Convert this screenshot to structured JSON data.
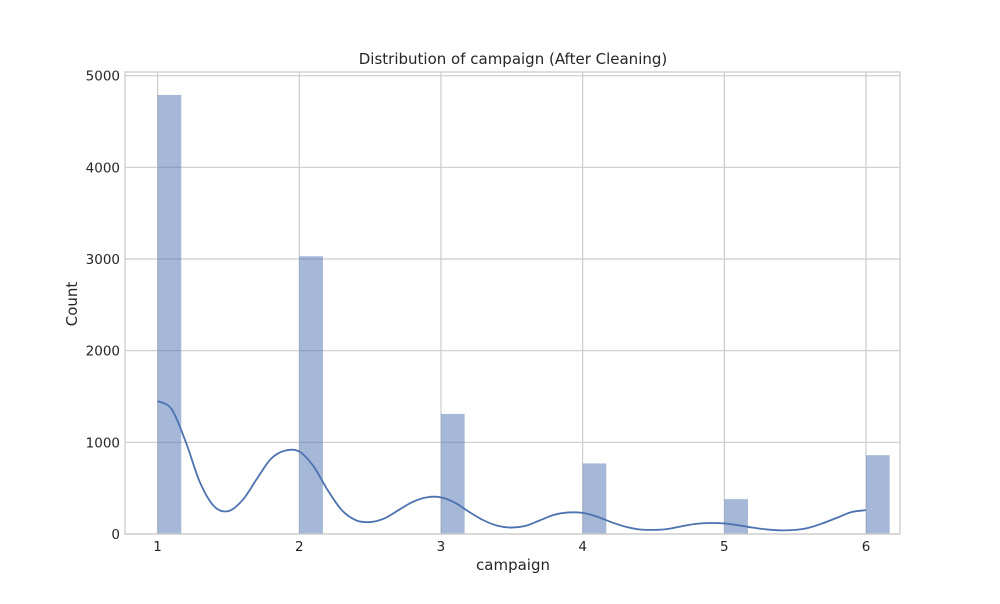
{
  "chart_data": {
    "type": "bar",
    "title": "Distribution of campaign (After Cleaning)",
    "xlabel": "campaign",
    "ylabel": "Count",
    "x_ticks": [
      1,
      2,
      3,
      4,
      5,
      6
    ],
    "y_ticks": [
      0,
      1000,
      2000,
      3000,
      4000,
      5000
    ],
    "xlim": [
      0.77,
      6.24
    ],
    "ylim": [
      0,
      5040
    ],
    "grid": true,
    "bin_width": 0.167,
    "series": [
      {
        "values": [
          {
            "x": 1,
            "count": 4790
          },
          {
            "x": 2,
            "count": 3030
          },
          {
            "x": 3,
            "count": 1310
          },
          {
            "x": 4,
            "count": 770
          },
          {
            "x": 5,
            "count": 380
          },
          {
            "x": 6,
            "count": 860
          }
        ]
      }
    ],
    "kde": {
      "points": [
        [
          1.0,
          1450
        ],
        [
          1.1,
          1360
        ],
        [
          1.2,
          1000
        ],
        [
          1.3,
          560
        ],
        [
          1.4,
          300
        ],
        [
          1.5,
          250
        ],
        [
          1.6,
          370
        ],
        [
          1.7,
          600
        ],
        [
          1.8,
          820
        ],
        [
          1.9,
          910
        ],
        [
          2.0,
          900
        ],
        [
          2.1,
          740
        ],
        [
          2.2,
          480
        ],
        [
          2.3,
          260
        ],
        [
          2.4,
          150
        ],
        [
          2.5,
          130
        ],
        [
          2.6,
          170
        ],
        [
          2.7,
          260
        ],
        [
          2.8,
          350
        ],
        [
          2.9,
          400
        ],
        [
          3.0,
          400
        ],
        [
          3.1,
          340
        ],
        [
          3.2,
          240
        ],
        [
          3.3,
          150
        ],
        [
          3.4,
          90
        ],
        [
          3.5,
          70
        ],
        [
          3.6,
          90
        ],
        [
          3.7,
          150
        ],
        [
          3.8,
          210
        ],
        [
          3.9,
          235
        ],
        [
          4.0,
          230
        ],
        [
          4.1,
          190
        ],
        [
          4.2,
          130
        ],
        [
          4.3,
          80
        ],
        [
          4.4,
          50
        ],
        [
          4.5,
          45
        ],
        [
          4.6,
          55
        ],
        [
          4.7,
          85
        ],
        [
          4.8,
          110
        ],
        [
          4.9,
          120
        ],
        [
          5.0,
          115
        ],
        [
          5.1,
          95
        ],
        [
          5.2,
          70
        ],
        [
          5.3,
          50
        ],
        [
          5.4,
          40
        ],
        [
          5.5,
          45
        ],
        [
          5.6,
          70
        ],
        [
          5.7,
          120
        ],
        [
          5.8,
          180
        ],
        [
          5.9,
          240
        ],
        [
          6.0,
          260
        ]
      ]
    },
    "colors": {
      "bar": "#4c72b0",
      "bar_opacity": 0.5,
      "kde": "#4c72b0",
      "grid": "#cccccc",
      "background": "#ffffff"
    }
  }
}
